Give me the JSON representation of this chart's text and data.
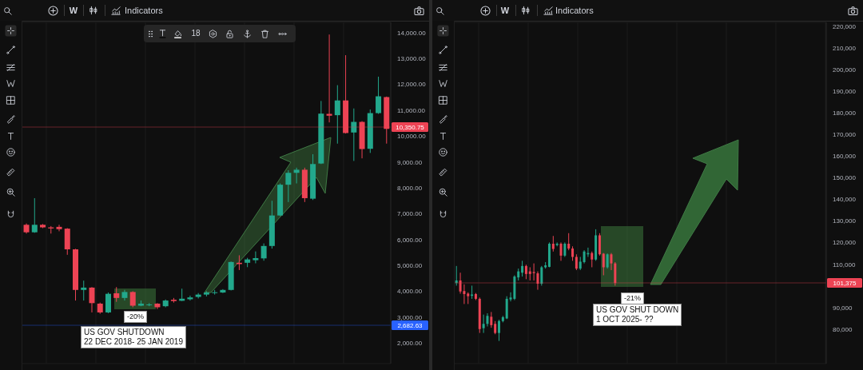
{
  "chart_data": [
    {
      "type": "candlestick",
      "categories": [
        null,
        null,
        null,
        null,
        null,
        null,
        null,
        null,
        null,
        null,
        null,
        null,
        null,
        null,
        null,
        null,
        null,
        null,
        null,
        null,
        null,
        null,
        null,
        null,
        null,
        null,
        null,
        null,
        null,
        null,
        null,
        null,
        null,
        null,
        null,
        null,
        null,
        null,
        null,
        null,
        null,
        null,
        null,
        null,
        null
      ],
      "ohlc": [
        [
          6570,
          6620,
          6230,
          6280
        ],
        [
          6280,
          7600,
          6260,
          6570
        ],
        [
          6570,
          6600,
          6440,
          6470
        ],
        [
          6470,
          6520,
          6230,
          6430
        ],
        [
          6490,
          6570,
          6320,
          6400
        ],
        [
          6420,
          6440,
          5410,
          5620
        ],
        [
          5620,
          5640,
          3640,
          4050
        ],
        [
          4050,
          4410,
          3640,
          4140
        ],
        [
          4140,
          4160,
          3180,
          3540
        ],
        [
          3520,
          3560,
          3130,
          3180
        ],
        [
          3180,
          3950,
          3150,
          3900
        ],
        [
          3920,
          4160,
          3590,
          3740
        ],
        [
          3740,
          4050,
          3640,
          3970
        ],
        [
          3970,
          4000,
          3380,
          3440
        ],
        [
          3440,
          3640,
          3420,
          3520
        ],
        [
          3460,
          3540,
          3420,
          3490
        ],
        [
          3520,
          3540,
          3310,
          3380
        ],
        [
          3420,
          3680,
          3380,
          3640
        ],
        [
          3670,
          3740,
          3560,
          3620
        ],
        [
          3630,
          4100,
          3620,
          3710
        ],
        [
          3690,
          3830,
          3640,
          3760
        ],
        [
          3780,
          3930,
          3720,
          3870
        ],
        [
          3870,
          4000,
          3800,
          3950
        ],
        [
          3950,
          4050,
          3870,
          3960
        ],
        [
          3950,
          4080,
          3930,
          4050
        ],
        [
          4050,
          5150,
          4030,
          5130
        ],
        [
          5100,
          5390,
          4820,
          5050
        ],
        [
          5100,
          5290,
          4930,
          5230
        ],
        [
          5200,
          5540,
          5080,
          5280
        ],
        [
          5270,
          5850,
          5180,
          5750
        ],
        [
          5750,
          7500,
          5650,
          6930
        ],
        [
          6930,
          8170,
          6910,
          8120
        ],
        [
          8120,
          8680,
          7450,
          8580
        ],
        [
          8580,
          8780,
          8170,
          8700
        ],
        [
          8700,
          8780,
          7450,
          7600
        ],
        [
          7580,
          9300,
          7530,
          8920
        ],
        [
          8940,
          11360,
          8920,
          10870
        ],
        [
          10860,
          13930,
          10530,
          10790
        ],
        [
          10810,
          11970,
          9710,
          11380
        ],
        [
          11380,
          13130,
          10100,
          10120
        ],
        [
          10140,
          11070,
          9040,
          10550
        ],
        [
          10550,
          10580,
          9140,
          9500
        ],
        [
          9510,
          11030,
          9350,
          10890
        ],
        [
          10890,
          12300,
          10860,
          11540
        ],
        [
          11510,
          11530,
          9710,
          10280
        ]
      ],
      "colors": [
        "#ed4354",
        "#22a88c",
        "#ed4354",
        "#ed4354",
        "#ed4354",
        "#ed4354",
        "#ed4354",
        "#22a88c",
        "#ed4354",
        "#ed4354",
        "#22a88c",
        "#ed4354",
        "#22a88c",
        "#ed4354",
        "#22a88c",
        "#22a88c",
        "#ed4354",
        "#22a88c",
        "#ed4354",
        "#22a88c",
        "#22a88c",
        "#22a88c",
        "#22a88c",
        "#22a88c",
        "#22a88c",
        "#22a88c",
        "#ed4354",
        "#22a88c",
        "#22a88c",
        "#22a88c",
        "#22a88c",
        "#22a88c",
        "#22a88c",
        "#22a88c",
        "#ed4354",
        "#22a88c",
        "#22a88c",
        "#ed4354",
        "#22a88c",
        "#ed4354",
        "#22a88c",
        "#ed4354",
        "#22a88c",
        "#22a88c",
        "#ed4354"
      ],
      "ylim": [
        1200,
        14400
      ],
      "yticks": [
        {
          "value": 2000,
          "label": "2,000.00"
        },
        {
          "value": 3000,
          "label": "3,000.00"
        },
        {
          "value": 4000,
          "label": "4,000.00"
        },
        {
          "value": 5000,
          "label": "5,000.00"
        },
        {
          "value": 6000,
          "label": "6,000.00"
        },
        {
          "value": 7000,
          "label": "7,000.00"
        },
        {
          "value": 8000,
          "label": "8,000.00"
        },
        {
          "value": 9000,
          "label": "9,000.00"
        },
        {
          "value": 10000,
          "label": "10,000.00"
        },
        {
          "value": 11000,
          "label": "11,000.00"
        },
        {
          "value": 12000,
          "label": "12,000.00"
        },
        {
          "value": 13000,
          "label": "13,000.00"
        },
        {
          "value": 14000,
          "label": "14,000.00"
        }
      ],
      "grid": true,
      "tick_labels": "y",
      "ref_lines": [
        {
          "axis": "y",
          "value": 10350.75,
          "label": "10,350.75",
          "color": "#ed4354"
        },
        {
          "axis": "y",
          "value": 2682.63,
          "label": "2,682.63",
          "color": "#2962ff"
        }
      ],
      "annotations": [
        "W",
        "Indicators",
        "18",
        "-20%",
        "US GOV SHUTDOWN\n22 DEC 2018- 25 JAN 2019"
      ]
    },
    {
      "type": "candlestick",
      "categories": [
        null,
        null,
        null,
        null,
        null,
        null,
        null,
        null,
        null,
        null,
        null,
        null,
        null,
        null,
        null,
        null,
        null,
        null,
        null,
        null,
        null,
        null,
        null,
        null,
        null,
        null,
        null,
        null,
        null,
        null,
        null,
        null,
        null,
        null,
        null,
        null,
        null,
        null,
        null,
        null,
        null,
        null,
        null,
        null,
        null,
        null,
        null,
        null,
        null,
        null,
        null,
        null,
        null,
        null,
        null,
        null,
        null,
        null,
        null,
        null,
        null,
        null,
        null,
        null,
        null,
        null,
        null,
        null,
        null,
        null,
        null,
        null,
        null,
        null,
        null,
        null,
        null,
        null,
        null,
        null,
        null,
        null,
        null,
        null,
        null,
        null,
        null,
        null,
        null,
        null,
        null,
        null,
        null,
        null,
        null,
        null
      ],
      "ohlc": [
        [
          101300,
          109200,
          100100,
          102500
        ],
        [
          102500,
          106100,
          96400,
          97400
        ],
        [
          97600,
          100700,
          91600,
          96200
        ],
        [
          96400,
          97000,
          91600,
          95200
        ],
        [
          95400,
          100100,
          94000,
          96000
        ],
        [
          96200,
          96700,
          93400,
          94000
        ],
        [
          94000,
          94600,
          78200,
          80000
        ],
        [
          80400,
          86700,
          78200,
          82400
        ],
        [
          82400,
          87300,
          81200,
          86100
        ],
        [
          85700,
          87900,
          80600,
          81800
        ],
        [
          82400,
          83700,
          77600,
          78200
        ],
        [
          78200,
          84300,
          74500,
          83700
        ],
        [
          83700,
          86100,
          83100,
          85500
        ],
        [
          84900,
          95200,
          84600,
          94000
        ],
        [
          93700,
          97000,
          92800,
          94600
        ],
        [
          94000,
          104900,
          93400,
          104300
        ],
        [
          103900,
          108000,
          102500,
          106700
        ],
        [
          106100,
          111600,
          104300,
          109200
        ],
        [
          109200,
          109800,
          103100,
          105500
        ],
        [
          106700,
          108600,
          102500,
          105500
        ],
        [
          106400,
          110400,
          102500,
          105900
        ],
        [
          105800,
          106700,
          98200,
          101000
        ],
        [
          101000,
          109200,
          100100,
          108600
        ],
        [
          108600,
          111000,
          108000,
          109500
        ],
        [
          108800,
          120100,
          108600,
          119500
        ],
        [
          119500,
          123100,
          115900,
          117100
        ],
        [
          118900,
          120100,
          118300,
          119500
        ],
        [
          119500,
          120100,
          111600,
          114000
        ],
        [
          114000,
          120100,
          113400,
          119500
        ],
        [
          119500,
          124400,
          116500,
          117300
        ],
        [
          117300,
          118300,
          111600,
          113400
        ],
        [
          113400,
          114600,
          107300,
          108000
        ],
        [
          108000,
          113400,
          107300,
          111200
        ],
        [
          111000,
          116500,
          110400,
          115900
        ],
        [
          114600,
          117700,
          113400,
          115200
        ],
        [
          115200,
          115900,
          108600,
          112200
        ],
        [
          112200,
          126200,
          111600,
          123400
        ],
        [
          123400,
          124400,
          114000,
          114600
        ],
        [
          114900,
          115200,
          104900,
          108600
        ],
        [
          108600,
          115000,
          108000,
          114600
        ],
        [
          114600,
          115200,
          107300,
          110400
        ],
        [
          110400,
          111000,
          100100,
          101300
        ],
        null,
        null,
        null,
        null,
        null,
        null,
        null,
        null,
        null,
        null,
        null,
        null,
        null,
        null,
        null,
        null,
        null,
        null,
        null,
        null,
        null,
        null,
        null,
        null,
        null,
        null,
        null,
        null,
        null,
        null,
        null,
        null,
        null,
        null,
        null,
        null,
        null,
        null,
        null,
        null,
        null,
        null,
        null,
        null,
        null,
        null,
        null,
        null,
        null,
        null,
        null,
        null,
        null,
        null
      ],
      "colors": [
        "#22a88c",
        "#ed4354",
        "#ed4354",
        "#ed4354",
        "#22a88c",
        "#ed4354",
        "#ed4354",
        "#22a88c",
        "#22a88c",
        "#ed4354",
        "#ed4354",
        "#22a88c",
        "#22a88c",
        "#22a88c",
        "#22a88c",
        "#22a88c",
        "#22a88c",
        "#22a88c",
        "#ed4354",
        "#ed4354",
        "#ed4354",
        "#ed4354",
        "#22a88c",
        "#22a88c",
        "#22a88c",
        "#ed4354",
        "#22a88c",
        "#ed4354",
        "#22a88c",
        "#ed4354",
        "#ed4354",
        "#ed4354",
        "#22a88c",
        "#22a88c",
        "#22a88c",
        "#ed4354",
        "#22a88c",
        "#ed4354",
        "#ed4354",
        "#22a88c",
        "#ed4354",
        "#ed4354",
        null,
        null,
        null,
        null,
        null,
        null,
        null,
        null,
        null,
        null,
        null,
        null,
        null,
        null,
        null,
        null,
        null,
        null,
        null,
        null,
        null,
        null,
        null,
        null,
        null,
        null,
        null,
        null,
        null,
        null,
        null,
        null,
        null,
        null,
        null,
        null,
        null,
        null,
        null,
        null,
        null,
        null,
        null,
        null,
        null,
        null,
        null,
        null,
        null,
        null,
        null,
        null,
        null,
        null
      ],
      "ylim": [
        64000,
        222000
      ],
      "yticks": [
        {
          "value": 80000,
          "label": "80,000"
        },
        {
          "value": 90000,
          "label": "90,000"
        },
        {
          "value": 110000,
          "label": "110,000"
        },
        {
          "value": 120000,
          "label": "120,000"
        },
        {
          "value": 130000,
          "label": "130,000"
        },
        {
          "value": 140000,
          "label": "140,000"
        },
        {
          "value": 150000,
          "label": "150,000"
        },
        {
          "value": 160000,
          "label": "160,000"
        },
        {
          "value": 170000,
          "label": "170,000"
        },
        {
          "value": 180000,
          "label": "180,000"
        },
        {
          "value": 190000,
          "label": "190,000"
        },
        {
          "value": 200000,
          "label": "200,000"
        },
        {
          "value": 210000,
          "label": "210,000"
        },
        {
          "value": 220000,
          "label": "220,000"
        }
      ],
      "grid": true,
      "tick_labels": "y",
      "ref_lines": [
        {
          "axis": "y",
          "value": 101375,
          "label": "101,375",
          "color": "#ed4354"
        }
      ],
      "annotations": [
        "W",
        "Indicators",
        "-21%",
        "US GOV SHUT DOWN\n1 OCT 2025- ??"
      ]
    }
  ]
}
